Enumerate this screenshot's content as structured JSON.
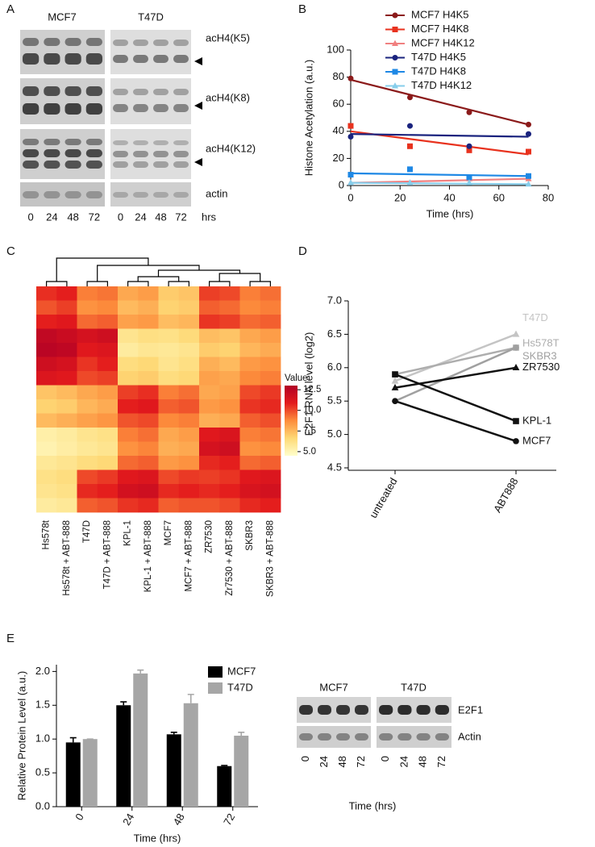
{
  "panel_labels": [
    "A",
    "B",
    "C",
    "D",
    "E"
  ],
  "blot_a": {
    "groups": [
      "MCF7",
      "T47D"
    ],
    "rows": [
      "acH4(K5)",
      "acH4(K8)",
      "acH4(K12)",
      "actin"
    ],
    "lanes": [
      "0",
      "24",
      "48",
      "72"
    ],
    "unit": "hrs"
  },
  "chart_data": [
    {
      "type": "scatter",
      "xlabel": "Time (hrs)",
      "ylabel": "Histone Acetylation (a.u.)",
      "x": [
        0,
        24,
        48,
        72
      ],
      "trend_x": [
        0,
        72
      ],
      "xlim": [
        0,
        80
      ],
      "xticks": [
        0,
        20,
        40,
        60,
        80
      ],
      "ylim": [
        0,
        100
      ],
      "yticks": [
        0,
        20,
        40,
        60,
        80,
        100
      ],
      "legend": "top-right",
      "series": [
        {
          "name": "MCF7 H4K5",
          "color": "#8b1a1a",
          "marker": "circle",
          "values": [
            79,
            65,
            54,
            45
          ],
          "trend": [
            78,
            45
          ]
        },
        {
          "name": "MCF7 H4K8",
          "color": "#e8321e",
          "marker": "square",
          "values": [
            44,
            29,
            26,
            25
          ],
          "trend": [
            40,
            23
          ]
        },
        {
          "name": "MCF7 H4K12",
          "color": "#f08080",
          "marker": "triangle",
          "values": [
            2,
            2,
            5,
            5
          ],
          "trend": [
            2,
            5
          ]
        },
        {
          "name": "T47D H4K5",
          "color": "#1a237e",
          "marker": "circle",
          "values": [
            36,
            44,
            29,
            38
          ],
          "trend": [
            38,
            36
          ]
        },
        {
          "name": "T47D H4K8",
          "color": "#1e88e5",
          "marker": "square",
          "values": [
            8,
            12,
            6,
            7
          ],
          "trend": [
            9,
            7
          ]
        },
        {
          "name": "T47D H4K12",
          "color": "#87ceeb",
          "marker": "triangle",
          "values": [
            2,
            2,
            2,
            1
          ],
          "trend": [
            2,
            1
          ]
        }
      ]
    },
    {
      "type": "heatmap",
      "columns": [
        "Hs578t",
        "Hs578t + ABT-888",
        "T47D",
        "T47D + ABT-888",
        "KPL-1",
        "KPL-1 + ABT-888",
        "MCF7",
        "MCF7 + ABT-888",
        "ZR7530",
        "Zr7530 + ABT-888",
        "SKBR3",
        "SKBR3 + ABT-888"
      ],
      "zlabel": "Value",
      "zlim": [
        4.5,
        13
      ],
      "zticks": [
        {
          "value": 5,
          "label": "5.0"
        },
        7.5,
        {
          "value": 10,
          "label": "10.0"
        },
        12.5
      ],
      "colormap": [
        "#ffffcc",
        "#fed976",
        "#fd8d3c",
        "#e31a1c",
        "#b10026"
      ],
      "values": [
        [
          10.5,
          10.8,
          9.0,
          9.2,
          8.0,
          8.3,
          7.0,
          7.2,
          10.2,
          10.0,
          9.0,
          9.3
        ],
        [
          9.8,
          10.2,
          8.6,
          8.8,
          7.5,
          7.8,
          6.8,
          7.0,
          9.6,
          9.4,
          8.8,
          9.0
        ],
        [
          10.8,
          11.0,
          9.4,
          9.6,
          8.2,
          8.4,
          7.4,
          7.6,
          10.4,
          10.2,
          9.4,
          9.6
        ],
        [
          12.3,
          12.0,
          11.5,
          11.8,
          6.0,
          6.3,
          6.2,
          6.5,
          7.4,
          7.2,
          8.0,
          8.3
        ],
        [
          12.6,
          12.4,
          11.0,
          11.2,
          5.6,
          5.9,
          5.8,
          6.0,
          7.0,
          6.8,
          7.6,
          7.9
        ],
        [
          11.8,
          11.5,
          10.4,
          10.8,
          6.4,
          6.6,
          6.0,
          6.3,
          7.8,
          7.5,
          8.4,
          8.6
        ],
        [
          11.2,
          11.0,
          10.0,
          10.2,
          6.8,
          7.0,
          6.4,
          6.6,
          8.2,
          8.0,
          8.8,
          9.0
        ],
        [
          7.2,
          7.5,
          8.0,
          8.3,
          10.2,
          10.5,
          9.0,
          9.3,
          8.0,
          8.2,
          10.0,
          10.3
        ],
        [
          6.8,
          7.0,
          7.6,
          7.9,
          10.8,
          11.0,
          9.6,
          9.8,
          8.4,
          8.6,
          10.4,
          10.6
        ],
        [
          7.5,
          7.8,
          8.2,
          8.5,
          9.8,
          10.0,
          8.8,
          9.0,
          7.8,
          8.0,
          9.6,
          9.9
        ],
        [
          5.4,
          5.6,
          6.0,
          6.2,
          9.0,
          9.3,
          8.0,
          8.3,
          11.0,
          11.3,
          9.0,
          9.2
        ],
        [
          5.2,
          5.5,
          5.8,
          6.0,
          8.6,
          8.9,
          7.8,
          8.0,
          11.5,
          11.8,
          8.6,
          8.8
        ],
        [
          5.8,
          6.0,
          6.4,
          6.6,
          9.4,
          9.6,
          8.4,
          8.6,
          10.6,
          10.8,
          9.4,
          9.6
        ],
        [
          6.2,
          6.4,
          10.0,
          10.3,
          11.0,
          11.2,
          10.0,
          10.3,
          10.2,
          10.4,
          11.0,
          11.2
        ],
        [
          6.0,
          6.2,
          10.6,
          10.8,
          11.6,
          11.8,
          10.6,
          10.8,
          10.6,
          10.8,
          11.4,
          11.6
        ],
        [
          5.6,
          5.8,
          9.6,
          9.8,
          10.4,
          10.6,
          9.6,
          9.8,
          9.8,
          10.0,
          10.6,
          10.8
        ]
      ]
    },
    {
      "type": "line",
      "ylabel": "E2F1 RNA level (log2)",
      "categories": [
        "untreated",
        "ABT888"
      ],
      "ylim": [
        4.5,
        7.0
      ],
      "yticks": [
        4.5,
        {
          "value": 5,
          "label": "5.0"
        },
        5.5,
        {
          "value": 6,
          "label": "6.0"
        },
        6.5,
        {
          "value": 7,
          "label": "7.0"
        }
      ],
      "series": [
        {
          "name": "T47D",
          "color": "#c4c4c4",
          "marker": "triangle",
          "values": [
            5.8,
            6.5
          ]
        },
        {
          "name": "Hs578T",
          "color": "#adadad",
          "marker": "square",
          "values": [
            5.9,
            6.3
          ]
        },
        {
          "name": "SKBR3",
          "color": "#a0a0a0",
          "marker": "circle",
          "values": [
            5.5,
            6.3
          ]
        },
        {
          "name": "ZR7530",
          "color": "#111111",
          "marker": "triangle",
          "values": [
            5.7,
            6.0
          ]
        },
        {
          "name": "KPL-1",
          "color": "#111111",
          "marker": "square",
          "values": [
            5.9,
            5.2
          ]
        },
        {
          "name": "MCF7",
          "color": "#111111",
          "marker": "circle",
          "values": [
            5.5,
            4.9
          ]
        }
      ]
    },
    {
      "type": "bar",
      "xlabel": "Time (hrs)",
      "ylabel": "Relative Protein Level (a.u.)",
      "categories": [
        "0",
        "24",
        "48",
        "72"
      ],
      "ylim": [
        0,
        2.1
      ],
      "yticks": [
        {
          "value": 0,
          "label": "0.0"
        },
        0.5,
        {
          "value": 1,
          "label": "1.0"
        },
        1.5,
        {
          "value": 2,
          "label": "2.0"
        }
      ],
      "legend": "top-right",
      "series": [
        {
          "name": "MCF7",
          "color": "#000000",
          "values": [
            0.95,
            1.5,
            1.07,
            0.6
          ],
          "errors": [
            0.07,
            0.05,
            0.03,
            0.01
          ]
        },
        {
          "name": "T47D",
          "color": "#a6a6a6",
          "values": [
            1.0,
            1.97,
            1.53,
            1.05
          ],
          "errors": [
            0,
            0.05,
            0.13,
            0.05
          ]
        }
      ]
    }
  ],
  "blot_e": {
    "groups": [
      "MCF7",
      "T47D"
    ],
    "rows": [
      "E2F1",
      "Actin"
    ],
    "lanes": [
      "0",
      "24",
      "48",
      "72"
    ],
    "xlabel": "Time (hrs)"
  }
}
